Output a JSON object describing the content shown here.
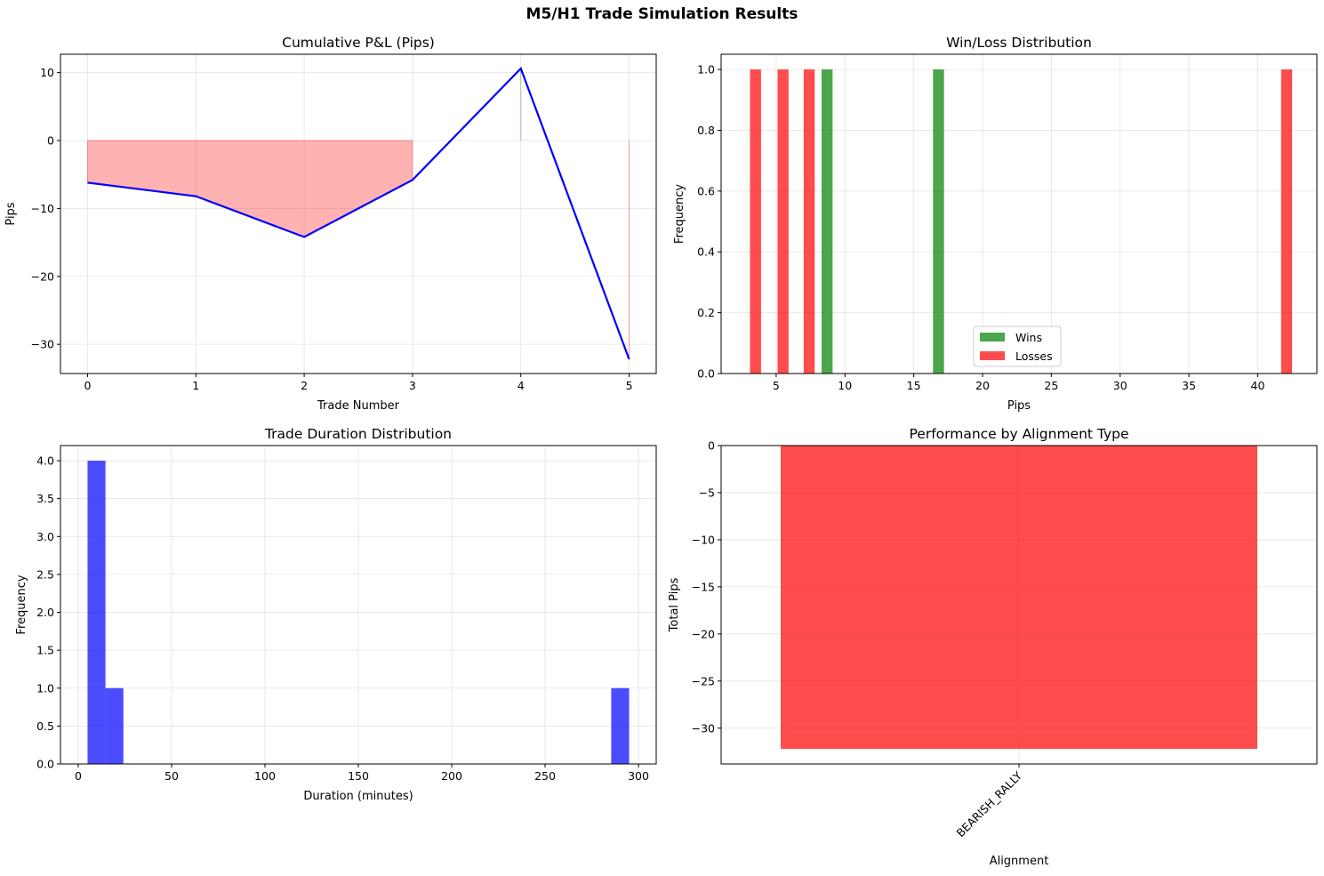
{
  "figure": {
    "title": "M5/H1 Trade Simulation Results"
  },
  "chart_data": [
    {
      "id": "cumulative",
      "type": "line",
      "title": "Cumulative P&L (Pips)",
      "xlabel": "Trade Number",
      "ylabel": "Pips",
      "x": [
        0,
        1,
        2,
        3,
        4,
        5
      ],
      "y": [
        -6.2,
        -8.2,
        -14.2,
        -5.8,
        10.6,
        -32.2
      ],
      "xlim": [
        -0.25,
        5.25
      ],
      "ylim": [
        -34.3,
        12.7
      ],
      "xticks": [
        0,
        1,
        2,
        3,
        4,
        5
      ],
      "yticks": [
        10,
        0,
        -10,
        -20,
        -30
      ],
      "line_color": "#0000ff",
      "fill_negative_color": "#ff0000",
      "fill_positive_color": "#008000",
      "grid": true
    },
    {
      "id": "winloss",
      "type": "bar",
      "title": "Win/Loss Distribution",
      "xlabel": "Pips",
      "ylabel": "Frequency",
      "xlim": [
        1.0,
        44.3
      ],
      "ylim": [
        0,
        1.05
      ],
      "xticks": [
        5,
        10,
        15,
        20,
        25,
        30,
        35,
        40
      ],
      "yticks": [
        0.0,
        0.2,
        0.4,
        0.6,
        0.8,
        1.0
      ],
      "series": [
        {
          "name": "Wins",
          "color": "#008000",
          "bars": [
            {
              "x0": 8.3,
              "x1": 9.1,
              "value": 1
            },
            {
              "x0": 16.4,
              "x1": 17.2,
              "value": 1
            }
          ]
        },
        {
          "name": "Losses",
          "color": "#ff0000",
          "bars": [
            {
              "x0": 3.1,
              "x1": 3.9,
              "value": 1
            },
            {
              "x0": 5.1,
              "x1": 5.9,
              "value": 1
            },
            {
              "x0": 7.0,
              "x1": 7.8,
              "value": 1
            },
            {
              "x0": 41.7,
              "x1": 42.5,
              "value": 1
            }
          ]
        }
      ],
      "legend_placement": "lower-center",
      "grid": true
    },
    {
      "id": "duration",
      "type": "bar",
      "title": "Trade Duration Distribution",
      "xlabel": "Duration (minutes)",
      "ylabel": "Frequency",
      "xlim": [
        -9.5,
        309.5
      ],
      "ylim": [
        0,
        4.2
      ],
      "xticks": [
        0,
        50,
        100,
        150,
        200,
        250,
        300
      ],
      "yticks": [
        0.0,
        0.5,
        1.0,
        1.5,
        2.0,
        2.5,
        3.0,
        3.5,
        4.0
      ],
      "color": "#0000ff",
      "bins": [
        {
          "x0": 5,
          "x1": 14.6,
          "value": 4
        },
        {
          "x0": 14.6,
          "x1": 24.2,
          "value": 1
        },
        {
          "x0": 285.4,
          "x1": 295,
          "value": 1
        }
      ],
      "grid": true
    },
    {
      "id": "alignment",
      "type": "bar",
      "title": "Performance by Alignment Type",
      "xlabel": "Alignment",
      "ylabel": "Total Pips",
      "categories": [
        "BEARISH_RALLY"
      ],
      "values": [
        -32.2
      ],
      "ylim": [
        -33.8,
        0
      ],
      "yticks": [
        0,
        -5,
        -10,
        -15,
        -20,
        -25,
        -30
      ],
      "color": "#ff0000",
      "grid": true
    }
  ]
}
